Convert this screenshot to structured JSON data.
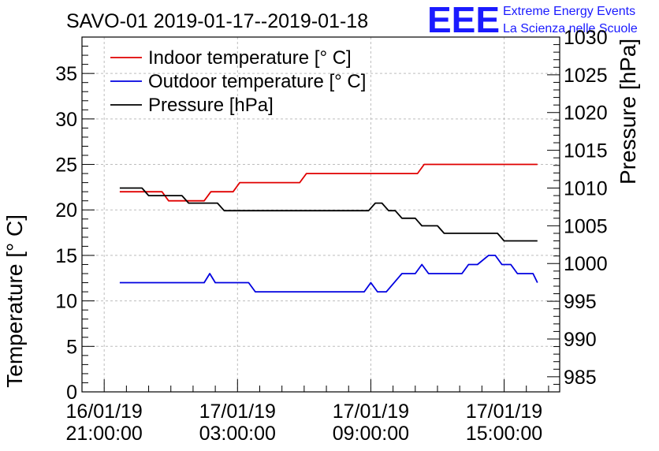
{
  "header": {
    "title": "SAVO-01 2019-01-17--2019-01-18",
    "logo_text": "EEE",
    "logo_line1": "Extreme Energy Events",
    "logo_line2": "La Scienza nelle Scuole",
    "logo_color": "#1a1aff"
  },
  "chart_data": {
    "type": "line",
    "ylabel": "Temperature [° C]",
    "y2label": "Pressure [hPa]",
    "ylim": [
      0,
      39
    ],
    "y2lim": [
      983,
      1030
    ],
    "xlim_hours": [
      -1.0,
      20.5
    ],
    "grid": true,
    "legend_position": "top-left",
    "x_ticks": [
      {
        "line1": "16/01/19",
        "line2": "21:00:00",
        "hour": 0
      },
      {
        "line1": "17/01/19",
        "line2": "03:00:00",
        "hour": 6
      },
      {
        "line1": "17/01/19",
        "line2": "09:00:00",
        "hour": 12
      },
      {
        "line1": "17/01/19",
        "line2": "15:00:00",
        "hour": 18
      }
    ],
    "y_ticks": [
      "0",
      "5",
      "10",
      "15",
      "20",
      "25",
      "30",
      "35"
    ],
    "y2_ticks": [
      "985",
      "990",
      "995",
      "1000",
      "1005",
      "1010",
      "1015",
      "1020",
      "1025",
      "1030"
    ],
    "series": [
      {
        "name": "Indoor temperature [° C]",
        "color": "#e00000",
        "axis": "left",
        "x": [
          0.7,
          2.6,
          2.9,
          3.5,
          3.8,
          4.5,
          4.8,
          5.8,
          6.1,
          7.9,
          8.2,
          8.8,
          9.1,
          14.1,
          14.4,
          19.5
        ],
        "y": [
          22,
          22,
          21,
          21,
          21,
          21,
          22,
          22,
          23,
          23,
          23,
          23,
          24,
          24,
          25,
          25
        ]
      },
      {
        "name": "Outdoor temperature [° C]",
        "color": "#0000e0",
        "axis": "left",
        "x": [
          0.7,
          4.5,
          4.75,
          5.0,
          6.5,
          6.8,
          11.7,
          12.0,
          12.3,
          12.7,
          13.4,
          14.0,
          14.3,
          14.6,
          15.0,
          16.1,
          16.4,
          16.8,
          17.3,
          17.6,
          17.9,
          18.3,
          18.6,
          19.0,
          19.3,
          19.5
        ],
        "y": [
          12,
          12,
          13,
          12,
          12,
          11,
          11,
          12,
          11,
          11,
          13,
          13,
          14,
          13,
          13,
          13,
          14,
          14,
          15,
          15,
          14,
          14,
          13,
          13,
          13,
          12
        ]
      },
      {
        "name": "Pressure [hPa]",
        "color": "#000000",
        "axis": "right",
        "x": [
          0.7,
          1.7,
          2.0,
          3.5,
          3.8,
          5.1,
          5.4,
          11.9,
          12.2,
          12.5,
          12.8,
          13.1,
          13.4,
          14.0,
          14.3,
          15.0,
          15.3,
          16.4,
          16.7,
          17.7,
          18.0,
          19.5
        ],
        "y": [
          1010,
          1010,
          1009,
          1009,
          1008,
          1008,
          1007,
          1007,
          1008,
          1008,
          1007,
          1007,
          1006,
          1006,
          1005,
          1005,
          1004,
          1004,
          1004,
          1004,
          1003,
          1003
        ]
      }
    ]
  }
}
